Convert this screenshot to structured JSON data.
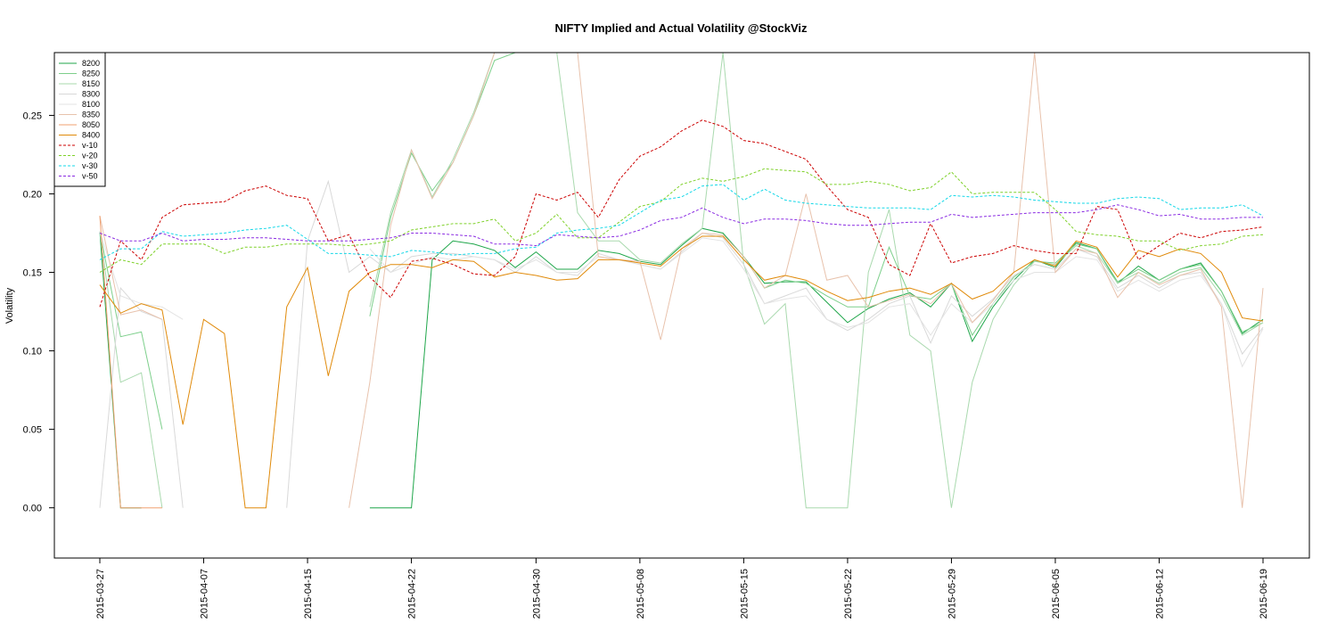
{
  "chart_data": {
    "type": "line",
    "title": "NIFTY Implied and Actual Volatility @StockViz",
    "xlabel": "",
    "ylabel": "Volatility",
    "ylim": [
      -0.032,
      0.29
    ],
    "yticks": [
      "0.00",
      "0.05",
      "0.10",
      "0.15",
      "0.20",
      "0.25"
    ],
    "ytick_values": [
      0.0,
      0.05,
      0.1,
      0.15,
      0.2,
      0.25
    ],
    "x": [
      "2015-03-27",
      "2015-03-30",
      "2015-03-31",
      "2015-04-01",
      "2015-04-06",
      "2015-04-07",
      "2015-04-08",
      "2015-04-09",
      "2015-04-10",
      "2015-04-13",
      "2015-04-15",
      "2015-04-16",
      "2015-04-17",
      "2015-04-20",
      "2015-04-21",
      "2015-04-22",
      "2015-04-23",
      "2015-04-24",
      "2015-04-27",
      "2015-04-28",
      "2015-04-29",
      "2015-04-30",
      "2015-05-04",
      "2015-05-05",
      "2015-05-06",
      "2015-05-07",
      "2015-05-08",
      "2015-05-11",
      "2015-05-12",
      "2015-05-13",
      "2015-05-14",
      "2015-05-15",
      "2015-05-18",
      "2015-05-19",
      "2015-05-20",
      "2015-05-21",
      "2015-05-22",
      "2015-05-25",
      "2015-05-26",
      "2015-05-27",
      "2015-05-28",
      "2015-05-29",
      "2015-06-01",
      "2015-06-02",
      "2015-06-03",
      "2015-06-04",
      "2015-06-05",
      "2015-06-08",
      "2015-06-09",
      "2015-06-10",
      "2015-06-11",
      "2015-06-12",
      "2015-06-15",
      "2015-06-16",
      "2015-06-17",
      "2015-06-18",
      "2015-06-19"
    ],
    "xticks": [
      "2015-03-27",
      "2015-04-07",
      "2015-04-15",
      "2015-04-22",
      "2015-04-30",
      "2015-05-08",
      "2015-05-15",
      "2015-05-22",
      "2015-05-29",
      "2015-06-05",
      "2015-06-12",
      "2015-06-19"
    ],
    "grid": false,
    "legend_position": "top-left",
    "series": [
      {
        "name": "8200",
        "color": "#1fa64a",
        "dashed": false,
        "values": [
          0.176,
          0,
          0,
          null,
          null,
          null,
          null,
          null,
          null,
          null,
          null,
          null,
          null,
          0,
          0,
          0,
          0.158,
          0.17,
          0.168,
          0.164,
          0.153,
          0.163,
          0.152,
          0.152,
          0.164,
          0.162,
          0.157,
          0.155,
          0.167,
          0.178,
          0.175,
          0.16,
          0.143,
          0.144,
          0.144,
          0.131,
          0.118,
          0.127,
          0.133,
          0.137,
          0.128,
          0.143,
          0.106,
          0.128,
          0.145,
          0.158,
          0.153,
          0.169,
          0.165,
          0.143,
          0.154,
          0.145,
          0.152,
          0.156,
          0.138,
          0.111,
          0.12
        ]
      },
      {
        "name": "8250",
        "color": "#7dcf8b",
        "dashed": false,
        "values": [
          0.176,
          0.109,
          0.112,
          0.05,
          null,
          null,
          null,
          null,
          null,
          null,
          null,
          null,
          null,
          0.122,
          0.185,
          0.226,
          0.202,
          0.22,
          0.25,
          0.285,
          0.29,
          null,
          null,
          null,
          0.29,
          0.29,
          0.29,
          null,
          null,
          null,
          null,
          0.16,
          0.14,
          0.145,
          0.143,
          0.135,
          0.128,
          0.128,
          0.166,
          0.135,
          0.133,
          0.143,
          0.11,
          0.13,
          0.147,
          0.157,
          0.156,
          0.168,
          0.165,
          0.144,
          0.152,
          0.145,
          0.152,
          0.155,
          0.138,
          0.112,
          0.118
        ]
      },
      {
        "name": "8150",
        "color": "#a9d9ae",
        "dashed": false,
        "values": [
          0.176,
          0.08,
          0.086,
          0,
          null,
          null,
          null,
          null,
          null,
          null,
          null,
          null,
          null,
          0.128,
          0.188,
          0.228,
          0.198,
          0.222,
          0.252,
          0.29,
          null,
          null,
          0.29,
          0.188,
          0.17,
          0.17,
          0.158,
          0.156,
          0.168,
          0.178,
          0.29,
          0.155,
          0.117,
          0.13,
          0,
          0,
          0,
          0.15,
          0.19,
          0.11,
          0.1,
          0,
          0.08,
          0.12,
          0.142,
          0.157,
          0.155,
          0.167,
          0.162,
          0.143,
          0.15,
          0.143,
          0.15,
          0.153,
          0.135,
          0.11,
          0.118
        ]
      },
      {
        "name": "8300",
        "color": "#d9d9d9",
        "dashed": false,
        "values": [
          0,
          0.14,
          0.125,
          0.12,
          0,
          null,
          null,
          null,
          null,
          0,
          0.17,
          0.208,
          0.15,
          0.16,
          0.15,
          0.16,
          0.162,
          0.162,
          0.16,
          0.158,
          0.15,
          0.16,
          0.15,
          0.148,
          0.162,
          0.158,
          0.155,
          0.152,
          0.163,
          0.175,
          0.172,
          0.155,
          0.13,
          0.135,
          0.14,
          0.12,
          0.113,
          0.12,
          0.13,
          0.135,
          0.105,
          0.135,
          0.122,
          0.133,
          0.148,
          0.155,
          0.152,
          0.165,
          0.16,
          0.14,
          0.148,
          0.14,
          0.148,
          0.15,
          0.13,
          0.098,
          0.115
        ]
      },
      {
        "name": "8100",
        "color": "#e3e3e3",
        "dashed": false,
        "values": [
          0.176,
          0.135,
          0.13,
          0.128,
          0.12,
          null,
          null,
          null,
          null,
          null,
          null,
          null,
          null,
          0.165,
          0.15,
          0.155,
          0.16,
          0.158,
          0.16,
          0.158,
          0.152,
          0.158,
          0.15,
          0.15,
          0.16,
          0.158,
          0.155,
          0.152,
          0.162,
          0.172,
          0.17,
          0.152,
          0.13,
          0.133,
          0.135,
          0.12,
          0.115,
          0.118,
          0.128,
          0.13,
          0.11,
          0.13,
          0.118,
          0.13,
          0.145,
          0.15,
          0.15,
          0.16,
          0.158,
          0.138,
          0.145,
          0.138,
          0.145,
          0.148,
          0.13,
          0.09,
          0.114
        ]
      },
      {
        "name": "8350",
        "color": "#e8c2ac",
        "dashed": false,
        "values": [
          0.186,
          0.123,
          0.126,
          0.12,
          null,
          null,
          null,
          null,
          null,
          null,
          null,
          null,
          0,
          0.08,
          0.18,
          0.228,
          0.197,
          0.22,
          0.25,
          0.29,
          0.29,
          0.29,
          0.29,
          0.29,
          0.16,
          0.158,
          0.157,
          0.107,
          0.165,
          0.175,
          0.174,
          0.16,
          0.14,
          0.148,
          0.2,
          0.145,
          0.148,
          0.128,
          0.132,
          0.136,
          0.13,
          0.143,
          0.118,
          0.132,
          0.15,
          0.29,
          0.15,
          0.165,
          0.162,
          0.134,
          0.15,
          0.142,
          0.148,
          0.152,
          0.128,
          0,
          0.14
        ]
      },
      {
        "name": "8050",
        "color": "#f0a070",
        "dashed": false,
        "values": [
          0.186,
          0,
          0,
          0,
          null,
          null,
          null,
          null,
          null,
          null,
          null,
          null,
          null,
          null,
          null,
          null,
          null,
          null,
          null,
          null,
          null,
          null,
          null,
          null,
          null,
          null,
          null,
          null,
          null,
          null,
          null,
          null,
          null,
          null,
          null,
          null,
          null,
          null,
          null,
          null,
          null,
          null,
          null,
          null,
          null,
          null,
          null,
          null,
          null,
          null,
          null,
          null,
          null,
          null,
          null,
          null,
          null
        ]
      },
      {
        "name": "8400",
        "color": "#e08a0a",
        "dashed": false,
        "values": [
          0.142,
          0.124,
          0.13,
          0.126,
          0.053,
          0.12,
          0.111,
          0,
          0,
          0.128,
          0.153,
          0.084,
          0.138,
          0.15,
          0.155,
          0.155,
          0.153,
          0.158,
          0.157,
          0.147,
          0.15,
          0.148,
          0.145,
          0.146,
          0.158,
          0.158,
          0.156,
          0.154,
          0.165,
          0.173,
          0.173,
          0.158,
          0.145,
          0.148,
          0.145,
          0.138,
          0.132,
          0.134,
          0.138,
          0.14,
          0.136,
          0.143,
          0.133,
          0.138,
          0.15,
          0.158,
          0.154,
          0.17,
          0.166,
          0.147,
          0.164,
          0.16,
          0.165,
          0.162,
          0.15,
          0.121,
          0.119
        ]
      },
      {
        "name": "v-10",
        "color": "#cc0000",
        "dashed": true,
        "values": [
          0.128,
          0.17,
          0.158,
          0.185,
          0.193,
          0.194,
          0.195,
          0.202,
          0.205,
          0.199,
          0.197,
          0.17,
          0.174,
          0.147,
          0.134,
          0.157,
          0.159,
          0.155,
          0.149,
          0.148,
          0.16,
          0.2,
          0.196,
          0.201,
          0.185,
          0.209,
          0.224,
          0.23,
          0.24,
          0.247,
          0.243,
          0.234,
          0.232,
          0.227,
          0.222,
          0.205,
          0.19,
          0.185,
          0.155,
          0.148,
          0.181,
          0.156,
          0.16,
          0.162,
          0.167,
          0.164,
          0.162,
          0.162,
          0.192,
          0.19,
          0.158,
          0.167,
          0.175,
          0.172,
          0.176,
          0.177,
          0.179
        ]
      },
      {
        "name": "v-20",
        "color": "#7fd12a",
        "dashed": true,
        "values": [
          0.15,
          0.158,
          0.155,
          0.168,
          0.168,
          0.168,
          0.162,
          0.166,
          0.166,
          0.168,
          0.168,
          0.168,
          0.167,
          0.168,
          0.17,
          0.177,
          0.179,
          0.181,
          0.181,
          0.184,
          0.17,
          0.175,
          0.187,
          0.172,
          0.172,
          0.182,
          0.192,
          0.195,
          0.206,
          0.21,
          0.208,
          0.211,
          0.216,
          0.215,
          0.214,
          0.206,
          0.206,
          0.208,
          0.206,
          0.202,
          0.204,
          0.214,
          0.2,
          0.201,
          0.201,
          0.201,
          0.19,
          0.176,
          0.174,
          0.173,
          0.17,
          0.17,
          0.164,
          0.167,
          0.168,
          0.173,
          0.174
        ]
      },
      {
        "name": "v-30",
        "color": "#14d8e8",
        "dashed": true,
        "values": [
          0.158,
          0.165,
          0.165,
          0.176,
          0.173,
          0.174,
          0.175,
          0.177,
          0.178,
          0.18,
          0.171,
          0.162,
          0.162,
          0.161,
          0.16,
          0.164,
          0.163,
          0.161,
          0.162,
          0.162,
          0.165,
          0.166,
          0.175,
          0.177,
          0.178,
          0.18,
          0.188,
          0.196,
          0.198,
          0.205,
          0.206,
          0.196,
          0.203,
          0.196,
          0.194,
          0.193,
          0.192,
          0.191,
          0.191,
          0.191,
          0.19,
          0.199,
          0.198,
          0.199,
          0.198,
          0.196,
          0.195,
          0.194,
          0.194,
          0.197,
          0.198,
          0.197,
          0.19,
          0.191,
          0.191,
          0.193,
          0.186
        ]
      },
      {
        "name": "v-50",
        "color": "#8a2be2",
        "dashed": true,
        "values": [
          0.175,
          0.17,
          0.17,
          0.175,
          0.17,
          0.171,
          0.171,
          0.172,
          0.172,
          0.171,
          0.17,
          0.17,
          0.17,
          0.171,
          0.172,
          0.175,
          0.175,
          0.174,
          0.173,
          0.168,
          0.168,
          0.167,
          0.174,
          0.173,
          0.172,
          0.173,
          0.177,
          0.183,
          0.185,
          0.191,
          0.185,
          0.181,
          0.184,
          0.184,
          0.183,
          0.181,
          0.18,
          0.18,
          0.181,
          0.182,
          0.182,
          0.187,
          0.185,
          0.186,
          0.187,
          0.188,
          0.188,
          0.188,
          0.19,
          0.193,
          0.19,
          0.186,
          0.187,
          0.184,
          0.184,
          0.185,
          0.185
        ]
      }
    ]
  }
}
